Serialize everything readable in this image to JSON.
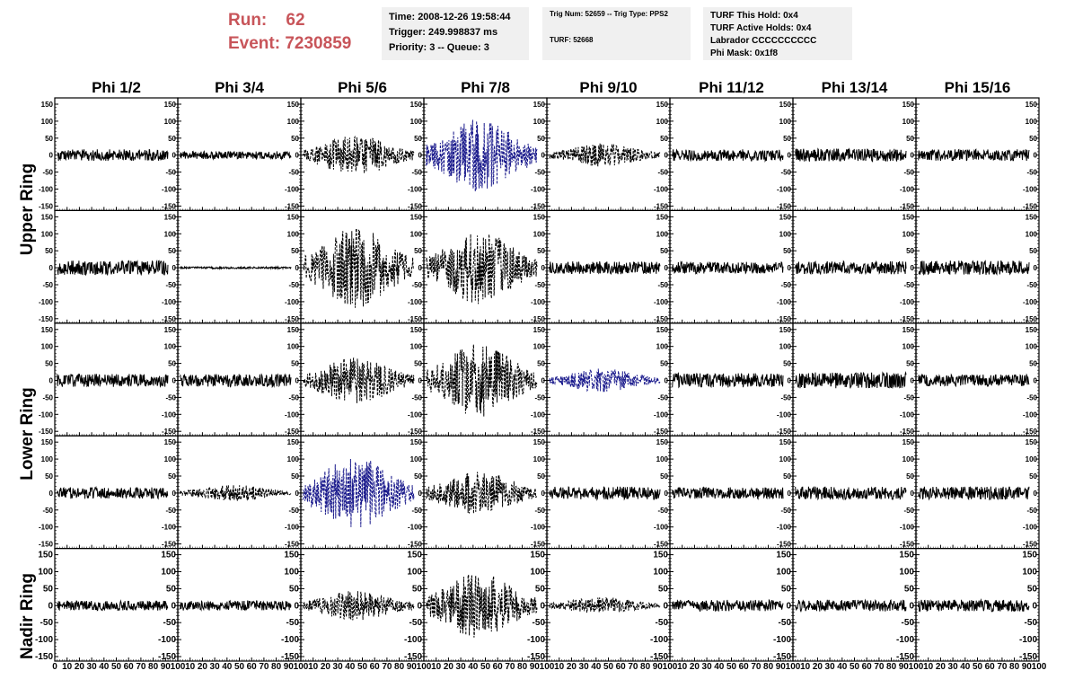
{
  "header": {
    "run_label": "Run:",
    "run_value": "62",
    "event_label": "Event:",
    "event_value": "7230859"
  },
  "time_box": {
    "line1": "Time: 2008-12-26 19:58:44",
    "line2": "Trigger: 249.998837 ms",
    "line3": "Priority: 3 -- Queue: 3"
  },
  "trig_box": {
    "line1": "Trig Num: 52659 -- Trig Type: PPS2",
    "line2": "TURF: 52668"
  },
  "turf_box": {
    "line1": "TURF This Hold: 0x4",
    "line2": "TURF Active Holds: 0x4",
    "line3": "Labrador CCCCCCCCCC",
    "line4": "Phi Mask: 0x1f8"
  },
  "phi_headers": [
    "Phi 1/2",
    "Phi 3/4",
    "Phi 5/6",
    "Phi 7/8",
    "Phi 9/10",
    "Phi 11/12",
    "Phi 13/14",
    "Phi 15/16"
  ],
  "ring_labels": [
    "Upper Ring",
    "Lower Ring",
    "Nadir Ring"
  ],
  "colors": {
    "normal_trace": "#000000",
    "highlight_trace": "#1a1a8c",
    "header_red": "#c8555a",
    "box_bg": "#f0f0f0"
  },
  "chart_data": {
    "type": "line",
    "rows": 5,
    "cols": 8,
    "xlim": [
      0,
      100
    ],
    "ylim": [
      -150,
      150
    ],
    "x_ticks": [
      0,
      10,
      20,
      30,
      40,
      50,
      60,
      70,
      80,
      90,
      100
    ],
    "y_ticks": [
      -150,
      -100,
      -50,
      0,
      50,
      100,
      150
    ],
    "x_tick_labels_first": [
      "0",
      "10",
      "20",
      "30",
      "40",
      "50",
      "60",
      "70",
      "80",
      "90",
      "100"
    ],
    "x_tick_labels_other": [
      "10",
      "20",
      "30",
      "40",
      "50",
      "60",
      "70",
      "80",
      "90",
      "100"
    ],
    "grid": false,
    "trace_amplitude": [
      [
        18,
        12,
        60,
        110,
        35,
        18,
        20,
        18
      ],
      [
        22,
        3,
        120,
        110,
        20,
        18,
        20,
        22
      ],
      [
        20,
        20,
        70,
        110,
        35,
        22,
        25,
        18
      ],
      [
        18,
        25,
        110,
        65,
        20,
        18,
        20,
        20
      ],
      [
        15,
        15,
        45,
        100,
        25,
        18,
        18,
        18
      ]
    ],
    "trace_style": [
      [
        "solid",
        "solid",
        "dashed",
        "dashed-blue",
        "dashed",
        "solid",
        "solid",
        "solid"
      ],
      [
        "solid",
        "solid",
        "dashed",
        "dashed",
        "solid",
        "solid",
        "solid",
        "solid"
      ],
      [
        "solid",
        "solid",
        "dashed",
        "dashed",
        "dashed-blue",
        "solid",
        "solid",
        "solid"
      ],
      [
        "solid",
        "dashed",
        "dashed-blue",
        "dashed",
        "solid",
        "solid",
        "solid",
        "solid"
      ],
      [
        "solid",
        "solid",
        "dashed",
        "dashed",
        "dashed",
        "solid",
        "solid",
        "solid"
      ]
    ]
  }
}
